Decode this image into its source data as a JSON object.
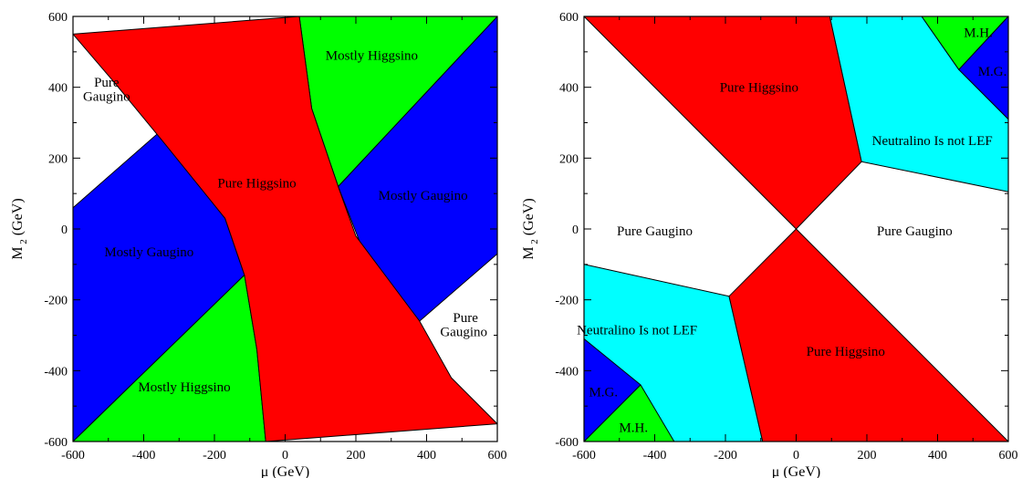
{
  "colors": {
    "red": "#ff0000",
    "blue": "#0000ff",
    "green": "#00ff00",
    "cyan": "#00ffff",
    "white": "#ffffff"
  },
  "chart_data": [
    {
      "type": "area",
      "xlabel_main": "μ",
      "xlabel_unit": "(GeV)",
      "ylabel_main": "M",
      "ylabel_sub": "2",
      "ylabel_unit": "(GeV)",
      "xlim": [
        -600,
        600
      ],
      "ylim": [
        -600,
        600
      ],
      "xticks": [
        -600,
        -400,
        -200,
        0,
        200,
        400,
        600
      ],
      "yticks": [
        -600,
        -400,
        -200,
        0,
        200,
        400,
        600
      ],
      "regions": [
        {
          "color": "blue",
          "points": [
            [
              -600,
              60
            ],
            [
              -360,
              270
            ],
            [
              -170,
              30
            ],
            [
              -115,
              -130
            ],
            [
              -600,
              -600
            ]
          ]
        },
        {
          "color": "blue",
          "points": [
            [
              150,
              120
            ],
            [
              600,
              600
            ],
            [
              600,
              -70
            ],
            [
              380,
              -260
            ],
            [
              220,
              -60
            ]
          ]
        },
        {
          "color": "green",
          "points": [
            [
              -600,
              -600
            ],
            [
              -115,
              -130
            ],
            [
              -80,
              -340
            ],
            [
              -55,
              -600
            ]
          ]
        },
        {
          "color": "green",
          "points": [
            [
              40,
              600
            ],
            [
              600,
              600
            ],
            [
              150,
              120
            ],
            [
              75,
              340
            ]
          ]
        },
        {
          "color": "red",
          "points": [
            [
              -600,
              550
            ],
            [
              -480,
              410
            ],
            [
              -340,
              240
            ],
            [
              -170,
              30
            ],
            [
              -115,
              -130
            ],
            [
              -80,
              -340
            ],
            [
              -55,
              -600
            ],
            [
              600,
              -550
            ],
            [
              470,
              -420
            ],
            [
              380,
              -260
            ],
            [
              200,
              -20
            ],
            [
              150,
              120
            ],
            [
              75,
              340
            ],
            [
              40,
              600
            ]
          ]
        }
      ],
      "labels": [
        {
          "text": "Pure",
          "x": -505,
          "y": 415
        },
        {
          "text": "Gaugino",
          "x": -505,
          "y": 375
        },
        {
          "text": "Mostly Higgsino",
          "x": 245,
          "y": 490
        },
        {
          "text": "Pure Higgsino",
          "x": -80,
          "y": 130
        },
        {
          "text": "Mostly Gaugino",
          "x": 390,
          "y": 95
        },
        {
          "text": "Mostly Gaugino",
          "x": -385,
          "y": -65
        },
        {
          "text": "Pure",
          "x": 510,
          "y": -250
        },
        {
          "text": "Gaugino",
          "x": 505,
          "y": -290
        },
        {
          "text": "Mostly Higgsino",
          "x": -285,
          "y": -445
        }
      ]
    },
    {
      "type": "area",
      "xlabel_main": "μ",
      "xlabel_unit": "(GeV)",
      "ylabel_main": "M",
      "ylabel_sub": "2",
      "ylabel_unit": "(GeV)",
      "xlim": [
        -600,
        600
      ],
      "ylim": [
        -600,
        600
      ],
      "xticks": [
        -600,
        -400,
        -200,
        0,
        200,
        400,
        600
      ],
      "yticks": [
        -600,
        -400,
        -200,
        0,
        200,
        400,
        600
      ],
      "regions": [
        {
          "color": "red",
          "points": [
            [
              -600,
              600
            ],
            [
              95,
              600
            ],
            [
              185,
              190
            ],
            [
              0,
              0
            ]
          ]
        },
        {
          "color": "red",
          "points": [
            [
              0,
              0
            ],
            [
              -190,
              -190
            ],
            [
              -95,
              -600
            ],
            [
              600,
              -600
            ]
          ]
        },
        {
          "color": "cyan",
          "points": [
            [
              95,
              600
            ],
            [
              355,
              600
            ],
            [
              460,
              450
            ],
            [
              600,
              310
            ],
            [
              600,
              105
            ],
            [
              185,
              190
            ]
          ]
        },
        {
          "color": "cyan",
          "points": [
            [
              -600,
              -100
            ],
            [
              -190,
              -190
            ],
            [
              -95,
              -600
            ],
            [
              -345,
              -600
            ],
            [
              -600,
              -310
            ]
          ]
        },
        {
          "color": "green",
          "points": [
            [
              355,
              600
            ],
            [
              600,
              600
            ],
            [
              460,
              450
            ]
          ]
        },
        {
          "color": "green",
          "points": [
            [
              -600,
              -600
            ],
            [
              -345,
              -600
            ],
            [
              -440,
              -440
            ]
          ]
        },
        {
          "color": "blue",
          "points": [
            [
              460,
              450
            ],
            [
              600,
              600
            ],
            [
              600,
              310
            ]
          ]
        },
        {
          "color": "blue",
          "points": [
            [
              -600,
              -310
            ],
            [
              -440,
              -440
            ],
            [
              -600,
              -600
            ]
          ]
        }
      ],
      "labels": [
        {
          "text": "Pure Higgsino",
          "x": -105,
          "y": 400
        },
        {
          "text": "Neutralino Is not LEF",
          "x": 385,
          "y": 250
        },
        {
          "text": "M.H.",
          "x": 515,
          "y": 555
        },
        {
          "text": "M.G.",
          "x": 555,
          "y": 445
        },
        {
          "text": "Pure Gaugino",
          "x": -400,
          "y": -5
        },
        {
          "text": "Pure Gaugino",
          "x": 335,
          "y": -5
        },
        {
          "text": "Neutralino Is not LEF",
          "x": -450,
          "y": -285
        },
        {
          "text": "Pure Higgsino",
          "x": 140,
          "y": -345
        },
        {
          "text": "M.G.",
          "x": -545,
          "y": -460
        },
        {
          "text": "M.H.",
          "x": -460,
          "y": -560
        }
      ]
    }
  ]
}
